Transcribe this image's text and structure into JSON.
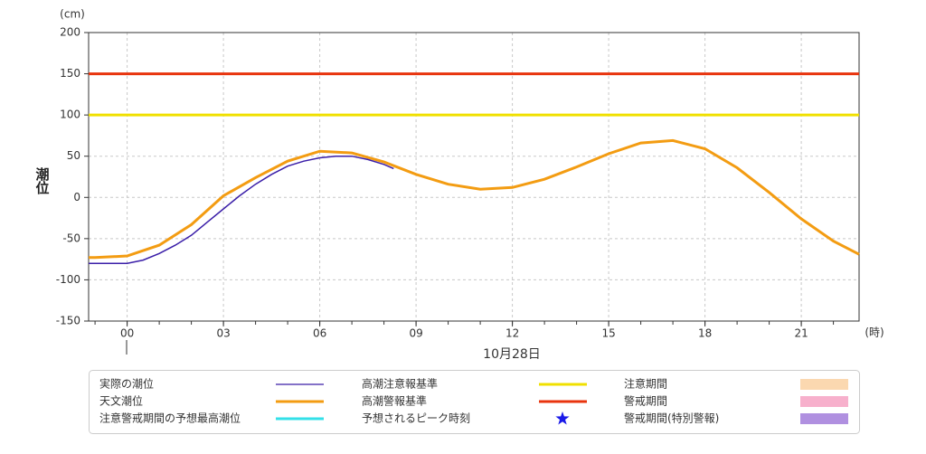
{
  "chart_data": {
    "type": "line",
    "y_label": "潮位",
    "y_unit": "(cm)",
    "x_unit": "(時)",
    "x_title": "10月28日",
    "xlim": [
      -1.2,
      22.8
    ],
    "xticks": [
      {
        "value": 0,
        "label": "00"
      },
      {
        "value": 3,
        "label": "03"
      },
      {
        "value": 6,
        "label": "06"
      },
      {
        "value": 9,
        "label": "09"
      },
      12,
      15,
      18,
      21
    ],
    "xminor_ticks": [
      -1,
      0,
      1,
      2,
      3,
      4,
      5,
      6,
      7,
      8,
      9,
      10,
      11,
      12,
      13,
      14,
      15,
      16,
      17,
      18,
      19,
      20,
      21,
      22
    ],
    "ylim": [
      -150,
      200
    ],
    "yticks": [
      -150,
      -100,
      -50,
      0,
      50,
      100,
      150,
      200
    ],
    "grid": true,
    "series": [
      {
        "name": "実際の潮位",
        "color": "#3a1ea8",
        "x": [
          -1.2,
          -0.5,
          0,
          0.5,
          1,
          1.5,
          2,
          2.5,
          3,
          3.5,
          4,
          4.5,
          5,
          5.5,
          6,
          6.5,
          7,
          7.5,
          8,
          8.3
        ],
        "values": [
          -80,
          -80,
          -80,
          -76,
          -68,
          -58,
          -46,
          -30,
          -14,
          2,
          16,
          28,
          38,
          44,
          48,
          50,
          50,
          46,
          40,
          35
        ]
      },
      {
        "name": "天文潮位",
        "color": "#f39c12",
        "x": [
          -1.2,
          -1,
          0,
          1,
          2,
          3,
          4,
          5,
          6,
          7,
          8,
          9,
          10,
          11,
          12,
          13,
          14,
          15,
          16,
          17,
          18,
          19,
          20,
          21,
          22,
          22.8
        ],
        "values": [
          -73,
          -73,
          -71,
          -58,
          -33,
          2,
          24,
          44,
          56,
          54,
          43,
          28,
          16,
          10,
          12,
          22,
          37,
          53,
          66,
          69,
          59,
          36,
          6,
          -26,
          -53,
          -69
        ]
      }
    ],
    "reference_lines": [
      {
        "name": "高潮注意報基準",
        "value": 100,
        "color": "#f0e000"
      },
      {
        "name": "高潮警報基準",
        "value": 150,
        "color": "#e8340e"
      }
    ],
    "legend_extras": [
      {
        "name": "注意警戒期間の予想最高潮位",
        "color": "#33e0e8",
        "symbol": "line"
      },
      {
        "name": "予想されるピーク時刻",
        "color": "#1a1ae8",
        "symbol": "star"
      },
      {
        "name": "注意期間",
        "color": "#fbd8b0",
        "symbol": "box"
      },
      {
        "name": "警戒期間",
        "color": "#f7b0cc",
        "symbol": "box"
      },
      {
        "name": "警戒期間(特別警報)",
        "color": "#b090e0",
        "symbol": "box"
      }
    ]
  }
}
